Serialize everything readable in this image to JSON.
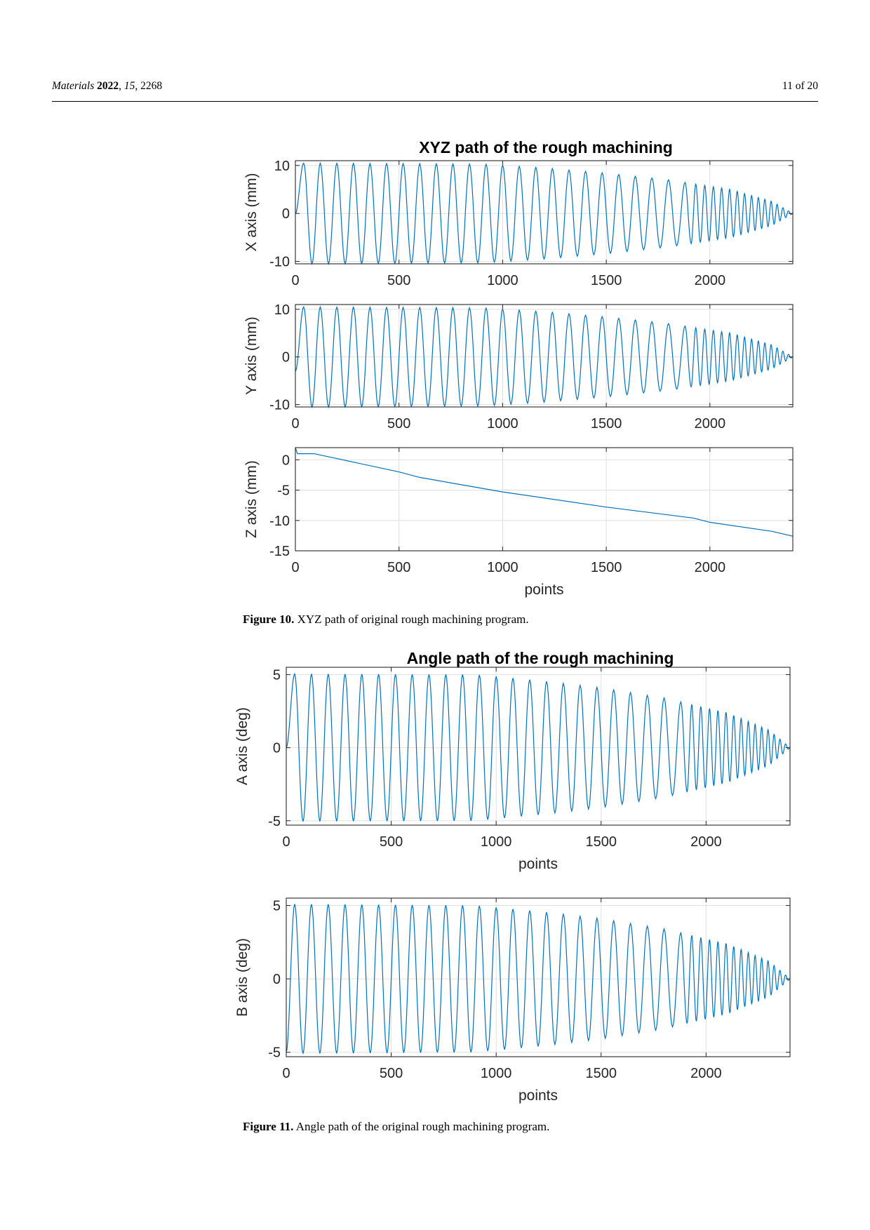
{
  "header": {
    "journal": "Materials",
    "year": "2022",
    "volume": "15",
    "article": "2268",
    "page": "11 of 20"
  },
  "figure10": {
    "title": "XYZ path of the rough machining",
    "caption_label": "Figure 10.",
    "caption_text": "XYZ path of original rough machining program."
  },
  "figure11": {
    "title": "Angle path of the rough machining",
    "caption_label": "Figure 11.",
    "caption_text": "Angle path of the original rough machining program."
  },
  "style": {
    "line_color": "#0072BD",
    "grid_color": "#e0e0e0"
  },
  "chart_data": [
    {
      "type": "line",
      "title": "XYZ path of the rough machining",
      "xlabel": "",
      "ylabel": "X axis (mm)",
      "xlim": [
        0,
        2400
      ],
      "ylim": [
        -10.5,
        11
      ],
      "xticks": [
        "0",
        "500",
        "1000",
        "1500",
        "2000"
      ],
      "yticks": [
        "-10",
        "0",
        "10"
      ],
      "grid": true,
      "series": [
        {
          "kind": "oscillation",
          "start": 0,
          "start_y": 0,
          "end_x": 2400,
          "end_y": 0,
          "turns": 46,
          "envelope": {
            "x": [
              0,
              900,
              1200,
              1500,
              1800,
              2100,
              2300,
              2400
            ],
            "amplitude": [
              10.5,
              10.3,
              9.5,
              8.4,
              7,
              5,
              2.5,
              0
            ]
          },
          "period": {
            "x": [
              0,
              1850,
              1900,
              2400
            ],
            "points": [
              80,
              80,
              45,
              25
            ]
          }
        }
      ]
    },
    {
      "type": "line",
      "title": "",
      "xlabel": "",
      "ylabel": "Y axis (mm)",
      "xlim": [
        0,
        2400
      ],
      "ylim": [
        -10.5,
        11
      ],
      "xticks": [
        "0",
        "500",
        "1000",
        "1500",
        "2000"
      ],
      "yticks": [
        "-10",
        "0",
        "10"
      ],
      "grid": true,
      "series": [
        {
          "kind": "oscillation",
          "start": 0,
          "start_y": -3,
          "end_x": 2400,
          "end_y": 0,
          "turns": 46,
          "envelope": {
            "x": [
              0,
              900,
              1200,
              1500,
              1800,
              2100,
              2300,
              2400
            ],
            "amplitude": [
              10.5,
              10.3,
              9.5,
              8.4,
              7,
              5,
              2.5,
              0
            ]
          },
          "period": {
            "x": [
              0,
              1850,
              1900,
              2400
            ],
            "points": [
              80,
              80,
              45,
              25
            ]
          }
        }
      ]
    },
    {
      "type": "line",
      "title": "",
      "xlabel": "points",
      "ylabel": "Z axis (mm)",
      "xlim": [
        0,
        2400
      ],
      "ylim": [
        -15,
        2
      ],
      "xticks": [
        "0",
        "500",
        "1000",
        "1500",
        "2000"
      ],
      "yticks": [
        "-15",
        "-10",
        "-5",
        "0"
      ],
      "grid": true,
      "series": [
        {
          "kind": "polyline",
          "x": [
            0,
            5,
            10,
            90,
            500,
            600,
            1000,
            1500,
            1920,
            2000,
            2300,
            2400
          ],
          "y": [
            2,
            1.5,
            1,
            1,
            -2,
            -2.9,
            -5.3,
            -7.8,
            -9.6,
            -10.3,
            -11.8,
            -12.6
          ]
        }
      ]
    },
    {
      "type": "line",
      "title": "Angle path of the rough machining",
      "xlabel": "points",
      "ylabel": "A axis (deg)",
      "xlim": [
        0,
        2400
      ],
      "ylim": [
        -5.3,
        5.5
      ],
      "xticks": [
        "0",
        "500",
        "1000",
        "1500",
        "2000"
      ],
      "yticks": [
        "-5",
        "0",
        "5"
      ],
      "grid": true,
      "series": [
        {
          "kind": "oscillation",
          "start": 0,
          "start_y": 0,
          "end_x": 2400,
          "end_y": 0,
          "turns": 46,
          "envelope": {
            "x": [
              0,
              900,
              1200,
              1500,
              1800,
              2100,
              2300,
              2400
            ],
            "amplitude": [
              5.05,
              5,
              4.6,
              4.1,
              3.4,
              2.4,
              1.2,
              0
            ]
          },
          "period": {
            "x": [
              0,
              1850,
              1900,
              2400
            ],
            "points": [
              80,
              80,
              45,
              25
            ]
          }
        }
      ]
    },
    {
      "type": "line",
      "title": "",
      "xlabel": "points",
      "ylabel": "B axis (deg)",
      "xlim": [
        0,
        2400
      ],
      "ylim": [
        -5.3,
        5.5
      ],
      "xticks": [
        "0",
        "500",
        "1000",
        "1500",
        "2000"
      ],
      "yticks": [
        "-5",
        "0",
        "5"
      ],
      "grid": true,
      "series": [
        {
          "kind": "oscillation",
          "start": 0,
          "start_y": -5,
          "end_x": 2400,
          "end_y": 0,
          "turns": 46,
          "envelope": {
            "x": [
              0,
              900,
              1200,
              1500,
              1800,
              2100,
              2300,
              2400
            ],
            "amplitude": [
              5.1,
              5,
              4.6,
              4.1,
              3.4,
              2.4,
              1.2,
              0
            ]
          },
          "period": {
            "x": [
              0,
              1850,
              1900,
              2400
            ],
            "points": [
              80,
              80,
              45,
              25
            ]
          }
        }
      ]
    }
  ]
}
